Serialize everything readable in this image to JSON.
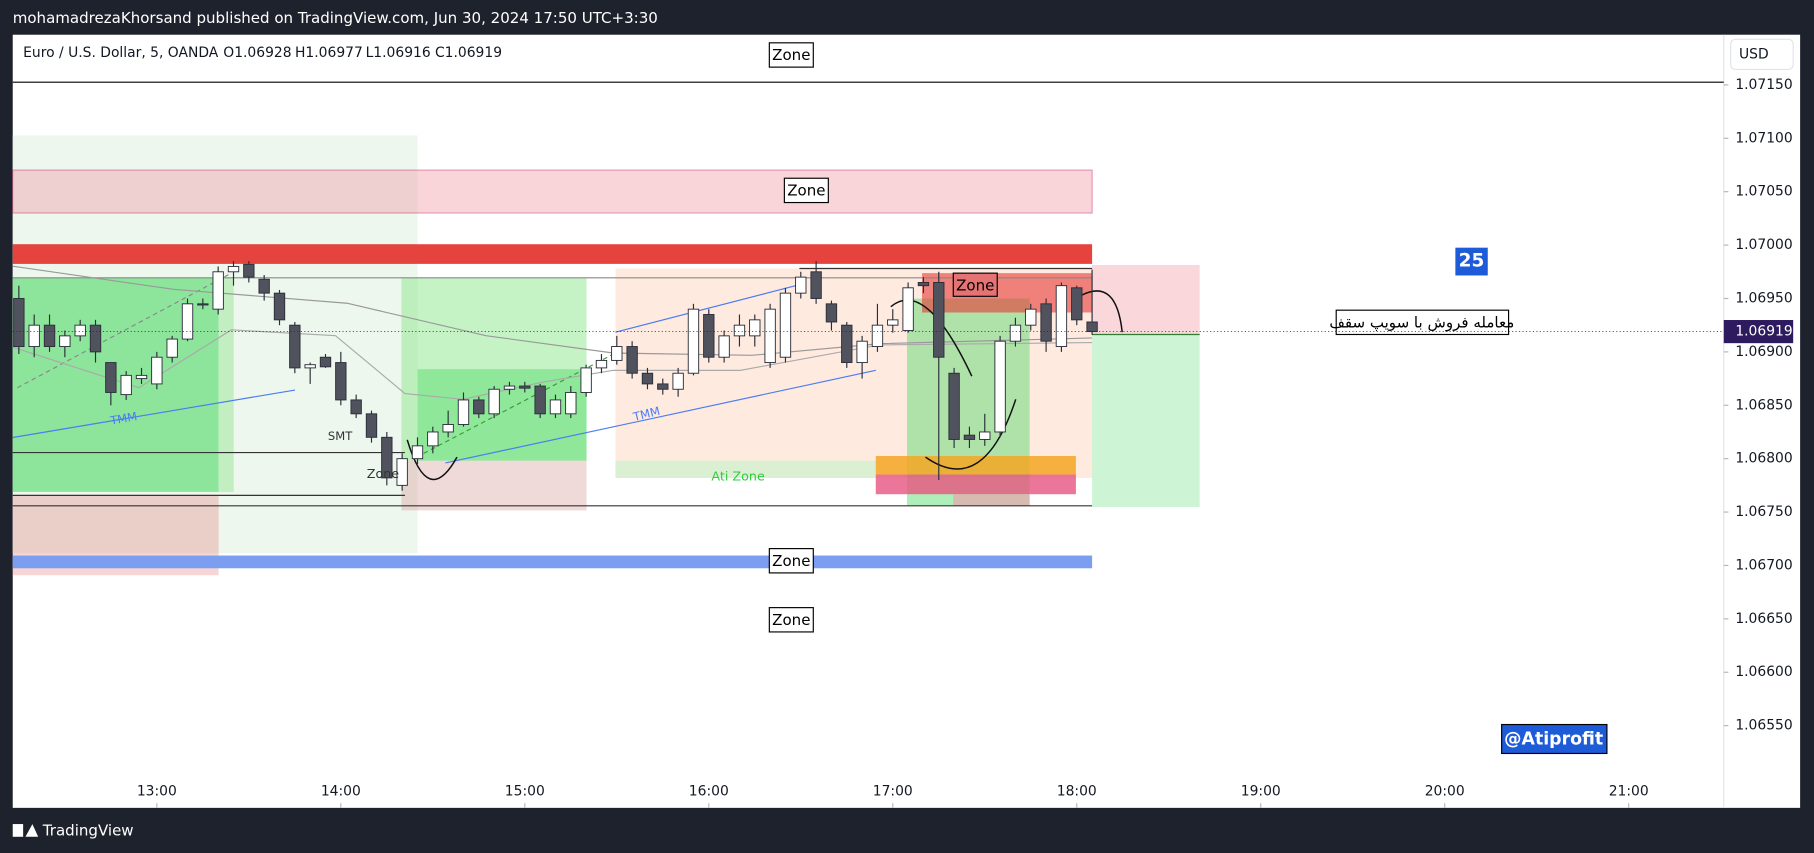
{
  "header": {
    "publisher": "mohamadrezaKhorsand published on TradingView.com, Jun 30, 2024 17:50 UTC+3:30",
    "symbol": "Euro / U.S. Dollar, 5, OANDA",
    "ohlc": [
      "O1.06928",
      "H1.06977",
      "L1.06916",
      "C1.06919"
    ],
    "currency": "USD"
  },
  "chart_data": {
    "type": "candlestick",
    "x": [
      735,
      740,
      745,
      750,
      755,
      760,
      765,
      770,
      775,
      780,
      785,
      790,
      795,
      800,
      805,
      810,
      815,
      820,
      825,
      830,
      835,
      840,
      845,
      850,
      855,
      860,
      865,
      870,
      875,
      880,
      885,
      890,
      895,
      900,
      905,
      910,
      915,
      920,
      925,
      930,
      935,
      940,
      945,
      950,
      955,
      960,
      965,
      970,
      975,
      980,
      985,
      990,
      995,
      1000,
      1005,
      1010,
      1015,
      1020,
      1025,
      1030,
      1035,
      1040,
      1045,
      1050,
      1055,
      1060,
      1065,
      1070,
      1075,
      1080,
      1085
    ],
    "open": [
      1.0695,
      1.06905,
      1.06925,
      1.06905,
      1.06915,
      1.06925,
      1.0689,
      1.0686,
      1.06875,
      1.0687,
      1.06895,
      1.06912,
      1.06945,
      1.0694,
      1.06975,
      1.06982,
      1.06968,
      1.06955,
      1.06925,
      1.06885,
      1.06895,
      1.0689,
      1.06855,
      1.06842,
      1.0682,
      1.06775,
      1.068,
      1.06812,
      1.06825,
      1.06832,
      1.06855,
      1.06842,
      1.06865,
      1.06868,
      1.06868,
      1.06842,
      1.06842,
      1.06862,
      1.06885,
      1.06892,
      1.06905,
      1.0688,
      1.0687,
      1.06865,
      1.0688,
      1.06935,
      1.06895,
      1.06915,
      1.06915,
      1.0689,
      1.06895,
      1.06955,
      1.06975,
      1.06945,
      1.06925,
      1.0689,
      1.06905,
      1.06925,
      1.0692,
      1.06965,
      1.06965,
      1.0688,
      1.06822,
      1.06818,
      1.06825,
      1.0691,
      1.06925,
      1.06945,
      1.06905,
      1.0696,
      1.06928
    ],
    "high": [
      1.06962,
      1.06935,
      1.06935,
      1.0692,
      1.0693,
      1.0693,
      1.0689,
      1.06882,
      1.06885,
      1.069,
      1.06915,
      1.0695,
      1.0695,
      1.0698,
      1.06985,
      1.06985,
      1.06972,
      1.06958,
      1.06928,
      1.0689,
      1.06898,
      1.069,
      1.0686,
      1.06845,
      1.06825,
      1.06805,
      1.0682,
      1.0683,
      1.06845,
      1.06862,
      1.06858,
      1.06868,
      1.06872,
      1.06872,
      1.0687,
      1.0686,
      1.06868,
      1.06888,
      1.06898,
      1.06915,
      1.0691,
      1.06885,
      1.06875,
      1.06885,
      1.06945,
      1.0694,
      1.0692,
      1.06935,
      1.06935,
      1.06945,
      1.0696,
      1.06975,
      1.06985,
      1.06948,
      1.06928,
      1.06915,
      1.06945,
      1.0694,
      1.06965,
      1.0697,
      1.06975,
      1.06885,
      1.0683,
      1.06842,
      1.06915,
      1.06932,
      1.06945,
      1.0695,
      1.06965,
      1.06962,
      1.06977
    ],
    "low": [
      1.06898,
      1.06895,
      1.069,
      1.06895,
      1.0691,
      1.0689,
      1.0685,
      1.06855,
      1.0687,
      1.06865,
      1.0689,
      1.0691,
      1.0694,
      1.06935,
      1.06962,
      1.06965,
      1.06948,
      1.06925,
      1.0688,
      1.0687,
      1.06885,
      1.0685,
      1.06838,
      1.06815,
      1.06775,
      1.0677,
      1.06795,
      1.06805,
      1.0682,
      1.0683,
      1.06838,
      1.06838,
      1.0686,
      1.06862,
      1.06838,
      1.06838,
      1.06838,
      1.06858,
      1.0688,
      1.06888,
      1.06875,
      1.06865,
      1.0686,
      1.06858,
      1.06878,
      1.0689,
      1.0689,
      1.06905,
      1.06905,
      1.06885,
      1.0689,
      1.0695,
      1.06945,
      1.0692,
      1.06885,
      1.06875,
      1.069,
      1.06918,
      1.06918,
      1.06955,
      1.0678,
      1.0681,
      1.0681,
      1.06812,
      1.0682,
      1.06905,
      1.0692,
      1.069,
      1.069,
      1.06925,
      1.06916
    ],
    "close": [
      1.06905,
      1.06925,
      1.06905,
      1.06915,
      1.06925,
      1.069,
      1.06862,
      1.06878,
      1.06878,
      1.06895,
      1.06912,
      1.06945,
      1.06944,
      1.06975,
      1.0698,
      1.0697,
      1.06955,
      1.0693,
      1.06885,
      1.06888,
      1.06886,
      1.06855,
      1.06842,
      1.0682,
      1.06782,
      1.068,
      1.06812,
      1.06825,
      1.06832,
      1.06855,
      1.06842,
      1.06865,
      1.06868,
      1.06866,
      1.06842,
      1.06855,
      1.06862,
      1.06885,
      1.06892,
      1.06905,
      1.0688,
      1.0687,
      1.06865,
      1.0688,
      1.0694,
      1.06895,
      1.06915,
      1.06925,
      1.0693,
      1.0694,
      1.06955,
      1.0697,
      1.0695,
      1.06928,
      1.0689,
      1.0691,
      1.06925,
      1.0693,
      1.0696,
      1.06962,
      1.06895,
      1.06818,
      1.06818,
      1.06825,
      1.0691,
      1.06925,
      1.0694,
      1.0691,
      1.06962,
      1.0693,
      1.06919
    ],
    "up_color": "#ffffff",
    "down_color": "#50535e",
    "xlim": [
      733,
      1291
    ],
    "xticks": [
      {
        "value": 780,
        "label": "13:00"
      },
      {
        "value": 840,
        "label": "14:00"
      },
      {
        "value": 900,
        "label": "15:00"
      },
      {
        "value": 960,
        "label": "16:00"
      },
      {
        "value": 1020,
        "label": "17:00"
      },
      {
        "value": 1080,
        "label": "18:00"
      },
      {
        "value": 1140,
        "label": "19:00"
      },
      {
        "value": 1200,
        "label": "20:00"
      },
      {
        "value": 1260,
        "label": "21:00"
      }
    ],
    "ylim": [
      1.06473,
      1.07197
    ],
    "yticks": [
      {
        "value": 1.0655,
        "label": "1.06550"
      },
      {
        "value": 1.066,
        "label": "1.06600"
      },
      {
        "value": 1.0665,
        "label": "1.06650"
      },
      {
        "value": 1.067,
        "label": "1.06700"
      },
      {
        "value": 1.0675,
        "label": "1.06750"
      },
      {
        "value": 1.068,
        "label": "1.06800"
      },
      {
        "value": 1.0685,
        "label": "1.06850"
      },
      {
        "value": 1.069,
        "label": "1.06900"
      },
      {
        "value": 1.0695,
        "label": "1.06950"
      },
      {
        "value": 1.07,
        "label": "1.07000"
      },
      {
        "value": 1.0705,
        "label": "1.07050"
      },
      {
        "value": 1.071,
        "label": "1.07100"
      },
      {
        "value": 1.0715,
        "label": "1.07150"
      }
    ],
    "last_price": 1.06919
  },
  "annotations": {
    "zones": [
      "Zone",
      "Zone",
      "Zone",
      "Zone",
      "Zone",
      "Zone"
    ],
    "smt": "SMT",
    "tmm": [
      "TMM",
      "TMM"
    ],
    "ati_zone": "Ati Zone",
    "note": "معامله فروش با سویپ سقف",
    "count": "25",
    "handle": "@Atiprofit"
  },
  "footer": "TradingView"
}
